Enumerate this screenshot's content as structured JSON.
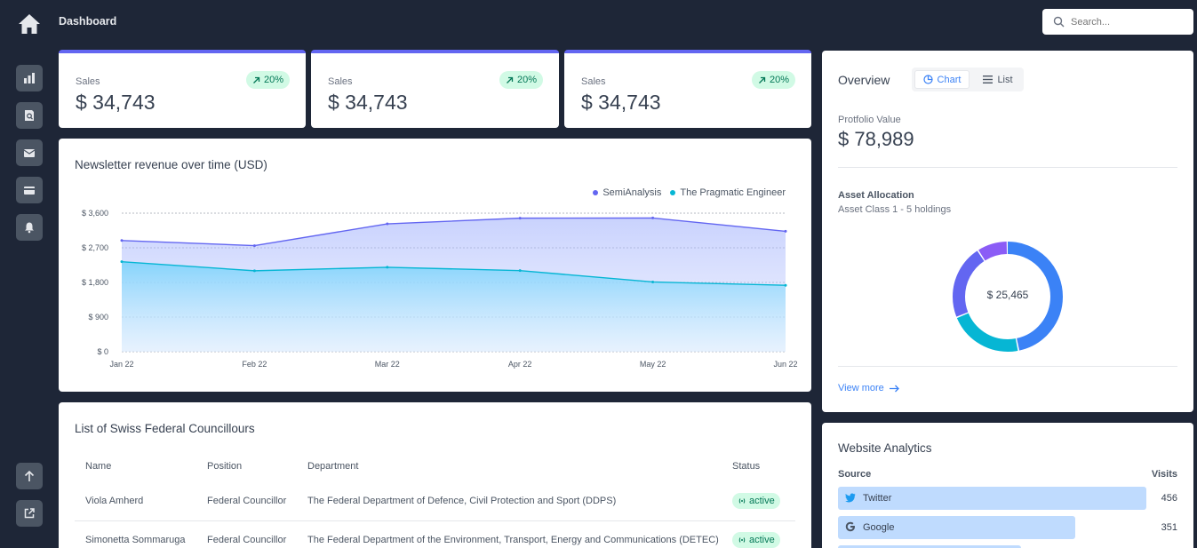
{
  "header": {
    "title": "Dashboard",
    "search_placeholder": "Search..."
  },
  "kpis": [
    {
      "label": "Sales",
      "value": "$ 34,743",
      "change": "20%"
    },
    {
      "label": "Sales",
      "value": "$ 34,743",
      "change": "20%"
    },
    {
      "label": "Sales",
      "value": "$ 34,743",
      "change": "20%"
    }
  ],
  "revenue_chart": {
    "title": "Newsletter revenue over time (USD)",
    "legend": [
      "SemiAnalysis",
      "The Pragmatic Engineer"
    ]
  },
  "chart_data": {
    "type": "area",
    "title": "Newsletter revenue over time (USD)",
    "categories": [
      "Jan 22",
      "Feb 22",
      "Mar 22",
      "Apr 22",
      "May 22",
      "Jun 22"
    ],
    "series": [
      {
        "name": "SemiAnalysis",
        "values": [
          2890,
          2756,
          3322,
          3470,
          3475,
          3129
        ],
        "color": "#6366f1"
      },
      {
        "name": "The Pragmatic Engineer",
        "values": [
          2338,
          2103,
          2194,
          2108,
          1812,
          1726
        ],
        "color": "#06b6d4"
      }
    ],
    "ylim": [
      0,
      3600
    ],
    "yticks": [
      "$ 0",
      "$ 900",
      "$ 1,800",
      "$ 2,700",
      "$ 3,600"
    ],
    "grid": true,
    "legend": "top-right"
  },
  "overview": {
    "title": "Overview",
    "toggle": [
      "Chart",
      "List"
    ],
    "portfolio_label": "Protfolio Value",
    "portfolio_value": "$ 78,989",
    "allocation_title": "Asset Allocation",
    "allocation_sub": "Asset Class 1 - 5 holdings",
    "donut_center": "$ 25,465",
    "donut_values": [
      47,
      22,
      22,
      9
    ],
    "donut_colors": [
      "#3b82f6",
      "#06b6d4",
      "#6366f1",
      "#8b5cf6"
    ],
    "view_more": "View more"
  },
  "councillors": {
    "title": "List of Swiss Federal Councillours",
    "columns": [
      "Name",
      "Position",
      "Department",
      "Status"
    ],
    "rows": [
      {
        "name": "Viola Amherd",
        "position": "Federal Councillor",
        "department": "The Federal Department of Defence, Civil Protection and Sport (DDPS)",
        "status": "active"
      },
      {
        "name": "Simonetta Sommaruga",
        "position": "Federal Councillor",
        "department": "The Federal Department of the Environment, Transport, Energy and Communications (DETEC)",
        "status": "active"
      }
    ]
  },
  "analytics": {
    "title": "Website Analytics",
    "col_source": "Source",
    "col_visits": "Visits",
    "rows": [
      {
        "source": "Twitter",
        "visits": "456"
      },
      {
        "source": "Google",
        "visits": "351"
      }
    ]
  }
}
